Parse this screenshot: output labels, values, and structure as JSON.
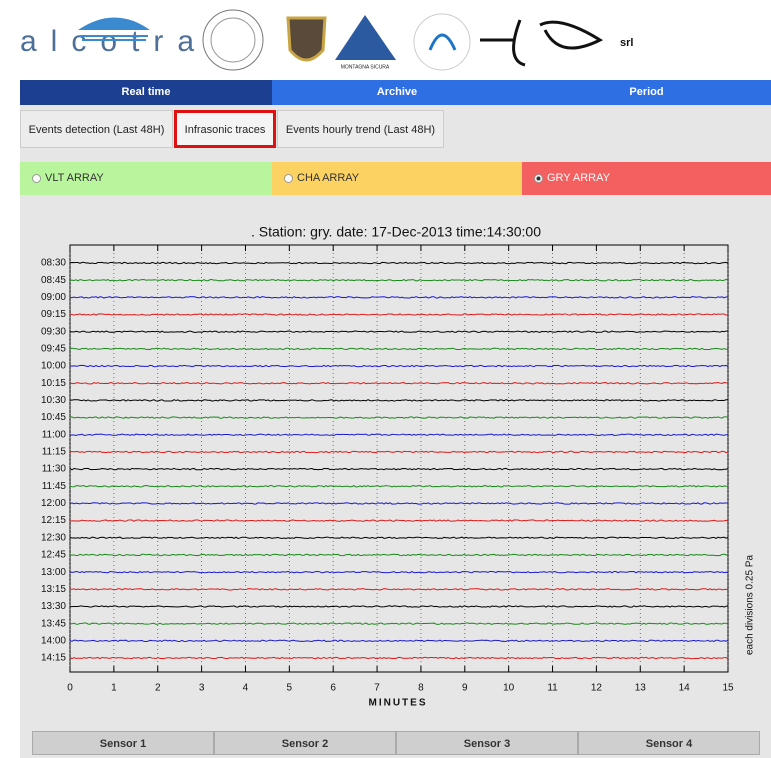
{
  "header": {
    "brand": "alcotra",
    "logo_text": "MONTAGNA SICURA",
    "company": "srl"
  },
  "nav": [
    {
      "label": "Real time",
      "color": "#1d3f92"
    },
    {
      "label": "Archive",
      "color": "#2e6fe3"
    },
    {
      "label": "Period",
      "color": "#2e6fe3"
    }
  ],
  "tabs": [
    {
      "label": "Events detection (Last 48H)",
      "active": false
    },
    {
      "label": "Infrasonic traces",
      "active": true
    },
    {
      "label": "Events hourly trend (Last 48H)",
      "active": false
    }
  ],
  "arrays": [
    {
      "label": "VLT ARRAY",
      "color": "#b9f59c",
      "selected": false
    },
    {
      "label": "CHA ARRAY",
      "color": "#fcd262",
      "selected": false
    },
    {
      "label": "GRY ARRAY",
      "color": "#f45f5f",
      "selected": true
    }
  ],
  "chart_data": {
    "type": "traces",
    "title": ". Station: gry. date: 17-Dec-2013 time:14:30:00",
    "categories": [
      "08:30",
      "08:45",
      "09:00",
      "09:15",
      "09:30",
      "09:45",
      "10:00",
      "10:15",
      "10:30",
      "10:45",
      "11:00",
      "11:15",
      "11:30",
      "11:45",
      "12:00",
      "12:15",
      "12:30",
      "12:45",
      "13:00",
      "13:15",
      "13:30",
      "13:45",
      "14:00",
      "14:15"
    ],
    "colors": [
      "#000000",
      "#1a8a1a",
      "#1a1acc",
      "#dd1a1a"
    ],
    "xlim": [
      0,
      15
    ],
    "xticks": [
      0,
      1,
      2,
      3,
      4,
      5,
      6,
      7,
      8,
      9,
      10,
      11,
      12,
      13,
      14,
      15
    ],
    "xlabel": "MINUTES",
    "y2label": "each divisions 0.25 Pa",
    "grid": true
  },
  "sensors": [
    "Sensor 1",
    "Sensor 2",
    "Sensor 3",
    "Sensor 4"
  ]
}
